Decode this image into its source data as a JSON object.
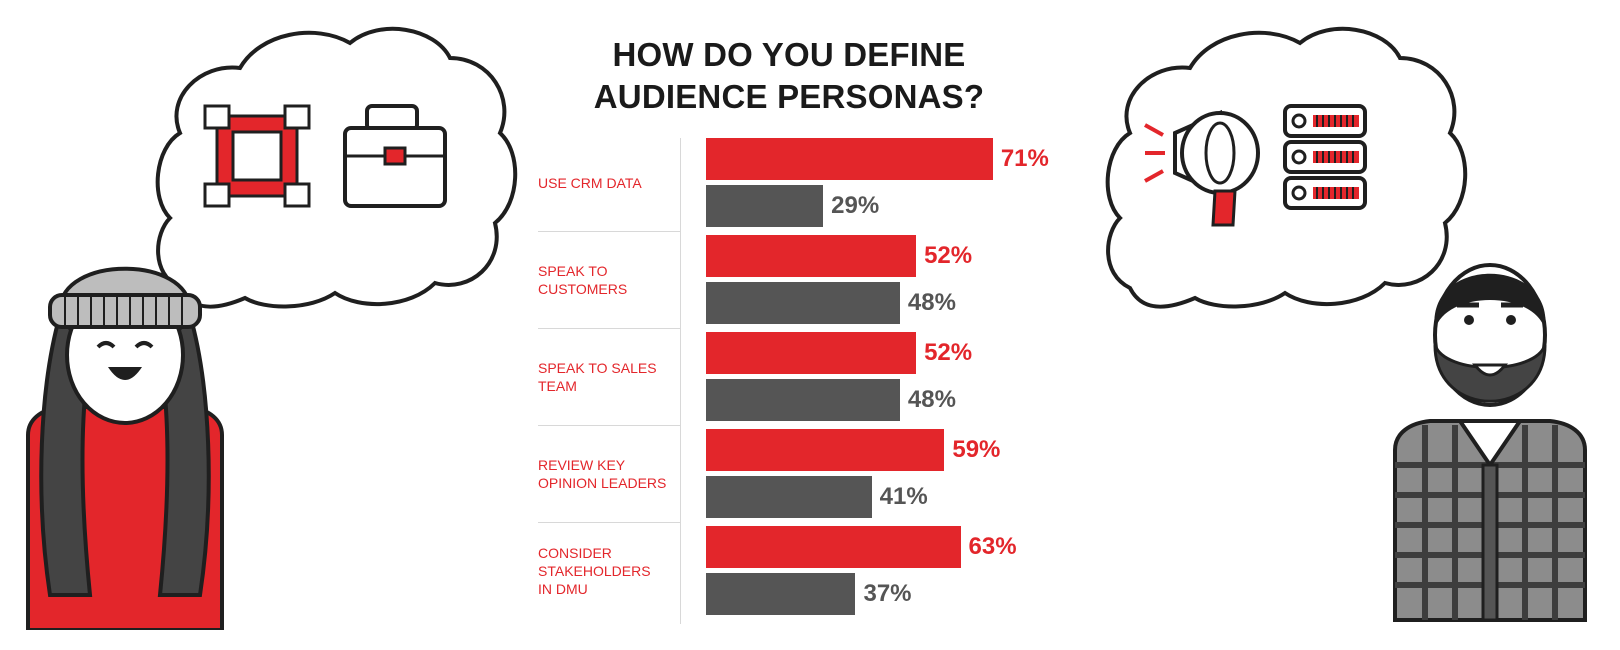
{
  "chart_data": {
    "type": "bar",
    "orientation": "horizontal",
    "title_lines": [
      "HOW DO YOU DEFINE",
      "AUDIENCE PERSONAS?"
    ],
    "categories": [
      "USE CRM DATA",
      "SPEAK TO\nCUSTOMERS",
      "SPEAK TO SALES\nTEAM",
      "REVIEW KEY\nOPINION LEADERS",
      "CONSIDER\nSTAKEHOLDERS\nIN DMU"
    ],
    "series": [
      {
        "values": [
          71,
          52,
          52,
          59,
          63
        ],
        "color": "#e3262b"
      },
      {
        "values": [
          29,
          48,
          48,
          41,
          37
        ],
        "color": "#555555"
      }
    ],
    "value_format": "{v}%",
    "xlim": [
      0,
      100
    ],
    "legend": "none",
    "grid": false
  },
  "illustrations": {
    "left_thought_icons": [
      "hands-teamwork-icon",
      "briefcase-icon"
    ],
    "right_thought_icons": [
      "megaphone-icon",
      "server-rack-icon"
    ],
    "left_person": "woman-beanie-avatar",
    "right_person": "bearded-man-avatar",
    "accent": "#e3262b",
    "dark": "#1f1f1f",
    "grey": "#555555"
  }
}
